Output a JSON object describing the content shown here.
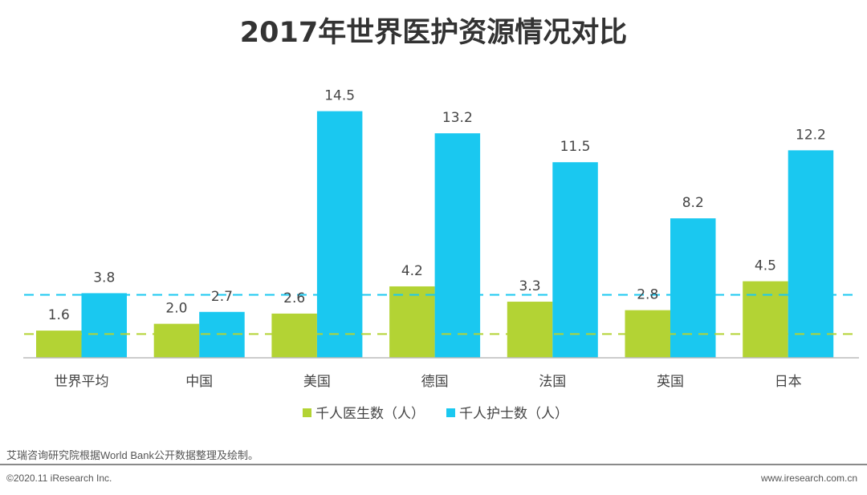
{
  "chart_data": {
    "type": "bar",
    "title": "2017年世界医护资源情况对比",
    "categories": [
      "世界平均",
      "中国",
      "美国",
      "德国",
      "法国",
      "英国",
      "日本"
    ],
    "series": [
      {
        "name": "千人医生数（人）",
        "color": "#b3d334",
        "values": [
          1.6,
          2.0,
          2.6,
          4.2,
          3.3,
          2.8,
          4.5
        ]
      },
      {
        "name": "千人护士数（人）",
        "color": "#1ac8f0",
        "values": [
          3.8,
          2.7,
          14.5,
          13.2,
          11.5,
          8.2,
          12.2
        ]
      }
    ],
    "reference_lines": [
      {
        "series": "千人医生数（人）",
        "value": 1.4,
        "color": "#b3d334",
        "style": "dashed"
      },
      {
        "series": "千人护士数（人）",
        "value": 3.7,
        "color": "#1ac8f0",
        "style": "dashed"
      }
    ],
    "xlabel": "",
    "ylabel": "",
    "ylim": [
      0,
      15
    ],
    "legend": "bottom-center",
    "grid": false
  },
  "source_note": "艾瑞咨询研究院根据World Bank公开数据整理及绘制。",
  "footer": {
    "copyright": "©2020.11 iResearch Inc.",
    "website": "www.iresearch.com.cn"
  }
}
